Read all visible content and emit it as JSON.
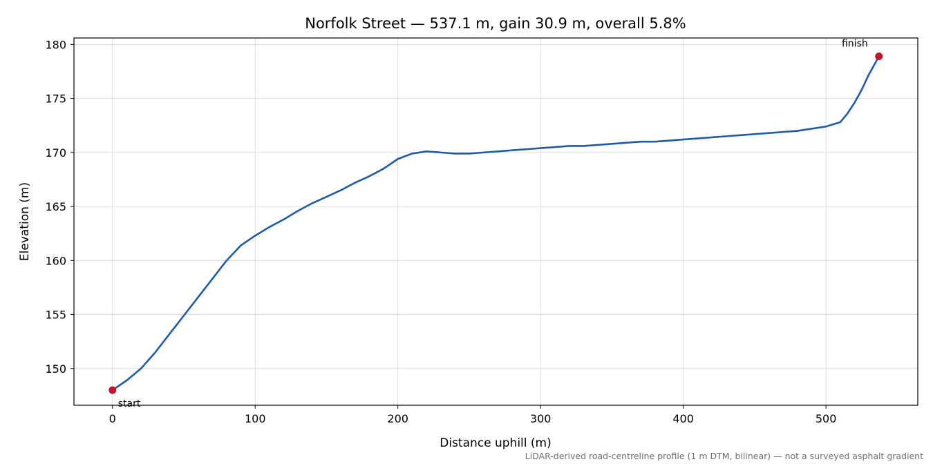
{
  "chart_data": {
    "type": "line",
    "title": "Norfolk Street — 537.1 m, gain 30.9 m, overall 5.8%",
    "xlabel": "Distance uphill (m)",
    "ylabel": "Elevation (m)",
    "xlim": [
      -27,
      537.1
    ],
    "ylim": [
      146.6,
      180.6
    ],
    "xticks": [
      0,
      100,
      200,
      300,
      400,
      500
    ],
    "yticks": [
      150,
      155,
      160,
      165,
      170,
      175,
      180
    ],
    "grid": true,
    "footnote": "LiDAR-derived road-centreline profile (1 m DTM, bilinear) — not a surveyed asphalt gradient",
    "line_color": "#1f5aa6",
    "marker_color": "#c0182a",
    "series": [
      {
        "x": [
          0,
          10,
          20,
          30,
          40,
          50,
          60,
          70,
          80,
          90,
          100,
          110,
          120,
          130,
          140,
          150,
          160,
          170,
          180,
          190,
          200,
          210,
          220,
          230,
          240,
          250,
          260,
          270,
          280,
          290,
          300,
          310,
          320,
          330,
          340,
          350,
          360,
          370,
          380,
          390,
          400,
          410,
          420,
          430,
          440,
          450,
          460,
          470,
          480,
          490,
          500,
          505,
          510,
          515,
          520,
          525,
          530,
          537.1
        ],
        "y": [
          148.0,
          148.9,
          150.0,
          151.5,
          153.2,
          154.9,
          156.6,
          158.3,
          160.0,
          161.4,
          162.3,
          163.1,
          163.8,
          164.6,
          165.3,
          165.9,
          166.5,
          167.2,
          167.8,
          168.5,
          169.4,
          169.9,
          170.1,
          170.0,
          169.9,
          169.9,
          170.0,
          170.1,
          170.2,
          170.3,
          170.4,
          170.5,
          170.6,
          170.6,
          170.7,
          170.8,
          170.9,
          171.0,
          171.0,
          171.1,
          171.2,
          171.3,
          171.4,
          171.5,
          171.6,
          171.7,
          171.8,
          171.9,
          172.0,
          172.2,
          172.4,
          172.6,
          172.8,
          173.6,
          174.6,
          175.8,
          177.2,
          178.9
        ]
      }
    ],
    "annotations": [
      {
        "label": "start",
        "x": 0,
        "y": 148.0
      },
      {
        "label": "finish",
        "x": 537.1,
        "y": 178.9
      }
    ]
  }
}
